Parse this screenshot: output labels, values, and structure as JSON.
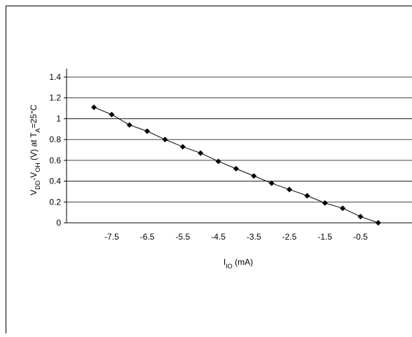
{
  "chart_data": {
    "type": "line",
    "y_label_parts": [
      "V",
      "DD",
      "-V",
      "OH",
      " (V) at T",
      "A",
      "=25°C"
    ],
    "x_label_parts": [
      "I",
      "IO",
      " (mA)"
    ],
    "x": [
      -8,
      -7.5,
      -7,
      -6.5,
      -6,
      -5.5,
      -5,
      -4.5,
      -4,
      -3.5,
      -3,
      -2.5,
      -2,
      -1.5,
      -1,
      -0.5,
      0
    ],
    "series": [
      {
        "color": "#000000",
        "values": [
          1.11,
          1.04,
          0.94,
          0.88,
          0.8,
          0.73,
          0.67,
          0.59,
          0.52,
          0.45,
          0.38,
          0.32,
          0.26,
          0.19,
          0.14,
          0.06,
          0
        ]
      }
    ],
    "xlim": [
      -8.77,
      0.95
    ],
    "xticks": [
      -7.5,
      -6.5,
      -5.5,
      -4.5,
      -3.5,
      -2.5,
      -1.5,
      -0.5
    ],
    "ylim": [
      0,
      1.4
    ],
    "yticks": [
      0,
      0.2,
      0.4,
      0.6,
      0.8,
      1,
      1.2,
      1.4
    ],
    "grid": true
  }
}
